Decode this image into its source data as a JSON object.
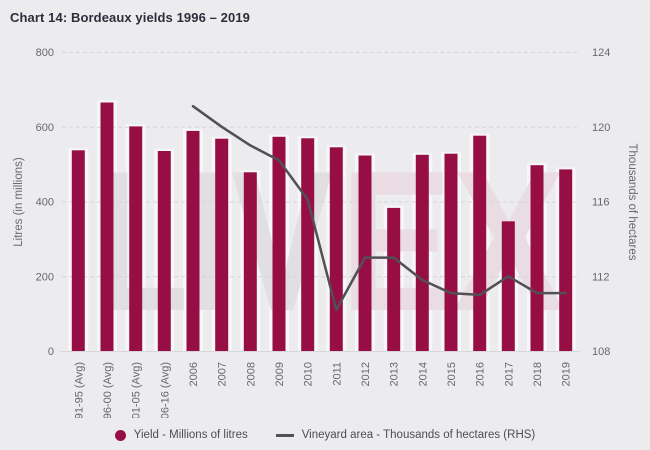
{
  "title": "Chart 14: Bordeaux yields 1996 – 2019",
  "watermark": {
    "text": "LIVEX",
    "liv": "LIV",
    "ex": "EX"
  },
  "colors": {
    "background": "#ecebed",
    "band": "#f7f6f8",
    "bar": "#970e45",
    "line": "#505055",
    "grid": "#d6d4d7",
    "axis_line": "#d8d6d9",
    "tick_text": "#68686d",
    "title_text": "#2d2d3c",
    "legend_text": "#4e4e53",
    "watermark_liv": "#e1dfe2",
    "watermark_ex": "#e9dce3"
  },
  "chart_data": {
    "type": "bar+line",
    "title": "Chart 14: Bordeaux yields 1996 – 2019",
    "categories": [
      "91-95 (Avg)",
      "96-00 (Avg)",
      "01-05 (Avg)",
      "06-16 (Avg)",
      "2006",
      "2007",
      "2008",
      "2009",
      "2010",
      "2011",
      "2012",
      "2013",
      "2014",
      "2015",
      "2016",
      "2017",
      "2018",
      "2019"
    ],
    "series": [
      {
        "name": "Yield - Millions of litres",
        "type": "bar",
        "axis": "left",
        "values": [
          537,
          665,
          601,
          535,
          589,
          568,
          478,
          573,
          569,
          545,
          523,
          383,
          525,
          528,
          576,
          347,
          497,
          486
        ]
      },
      {
        "name": "Vineyard area - Thousands of hectares (RHS)",
        "type": "line",
        "axis": "right",
        "values": [
          null,
          null,
          null,
          null,
          121.1,
          120.0,
          119.0,
          118.2,
          116.1,
          110.2,
          113.0,
          113.0,
          111.8,
          111.1,
          111.0,
          112.0,
          111.1,
          111.1
        ]
      }
    ],
    "left_axis": {
      "label": "Litres (in millions)",
      "ticks": [
        0,
        200,
        400,
        600,
        800
      ],
      "range": [
        0,
        800
      ]
    },
    "right_axis": {
      "label": "Thousands of hectares",
      "ticks": [
        108,
        112,
        116,
        120,
        124
      ],
      "range": [
        108,
        124
      ]
    },
    "grid": true,
    "gridline_style": "dashed",
    "legend_position": "bottom"
  },
  "legend": {
    "items": [
      {
        "label": "Yield - Millions of litres",
        "marker": "circle"
      },
      {
        "label": "Vineyard area - Thousands of hectares (RHS)",
        "marker": "line"
      }
    ]
  }
}
